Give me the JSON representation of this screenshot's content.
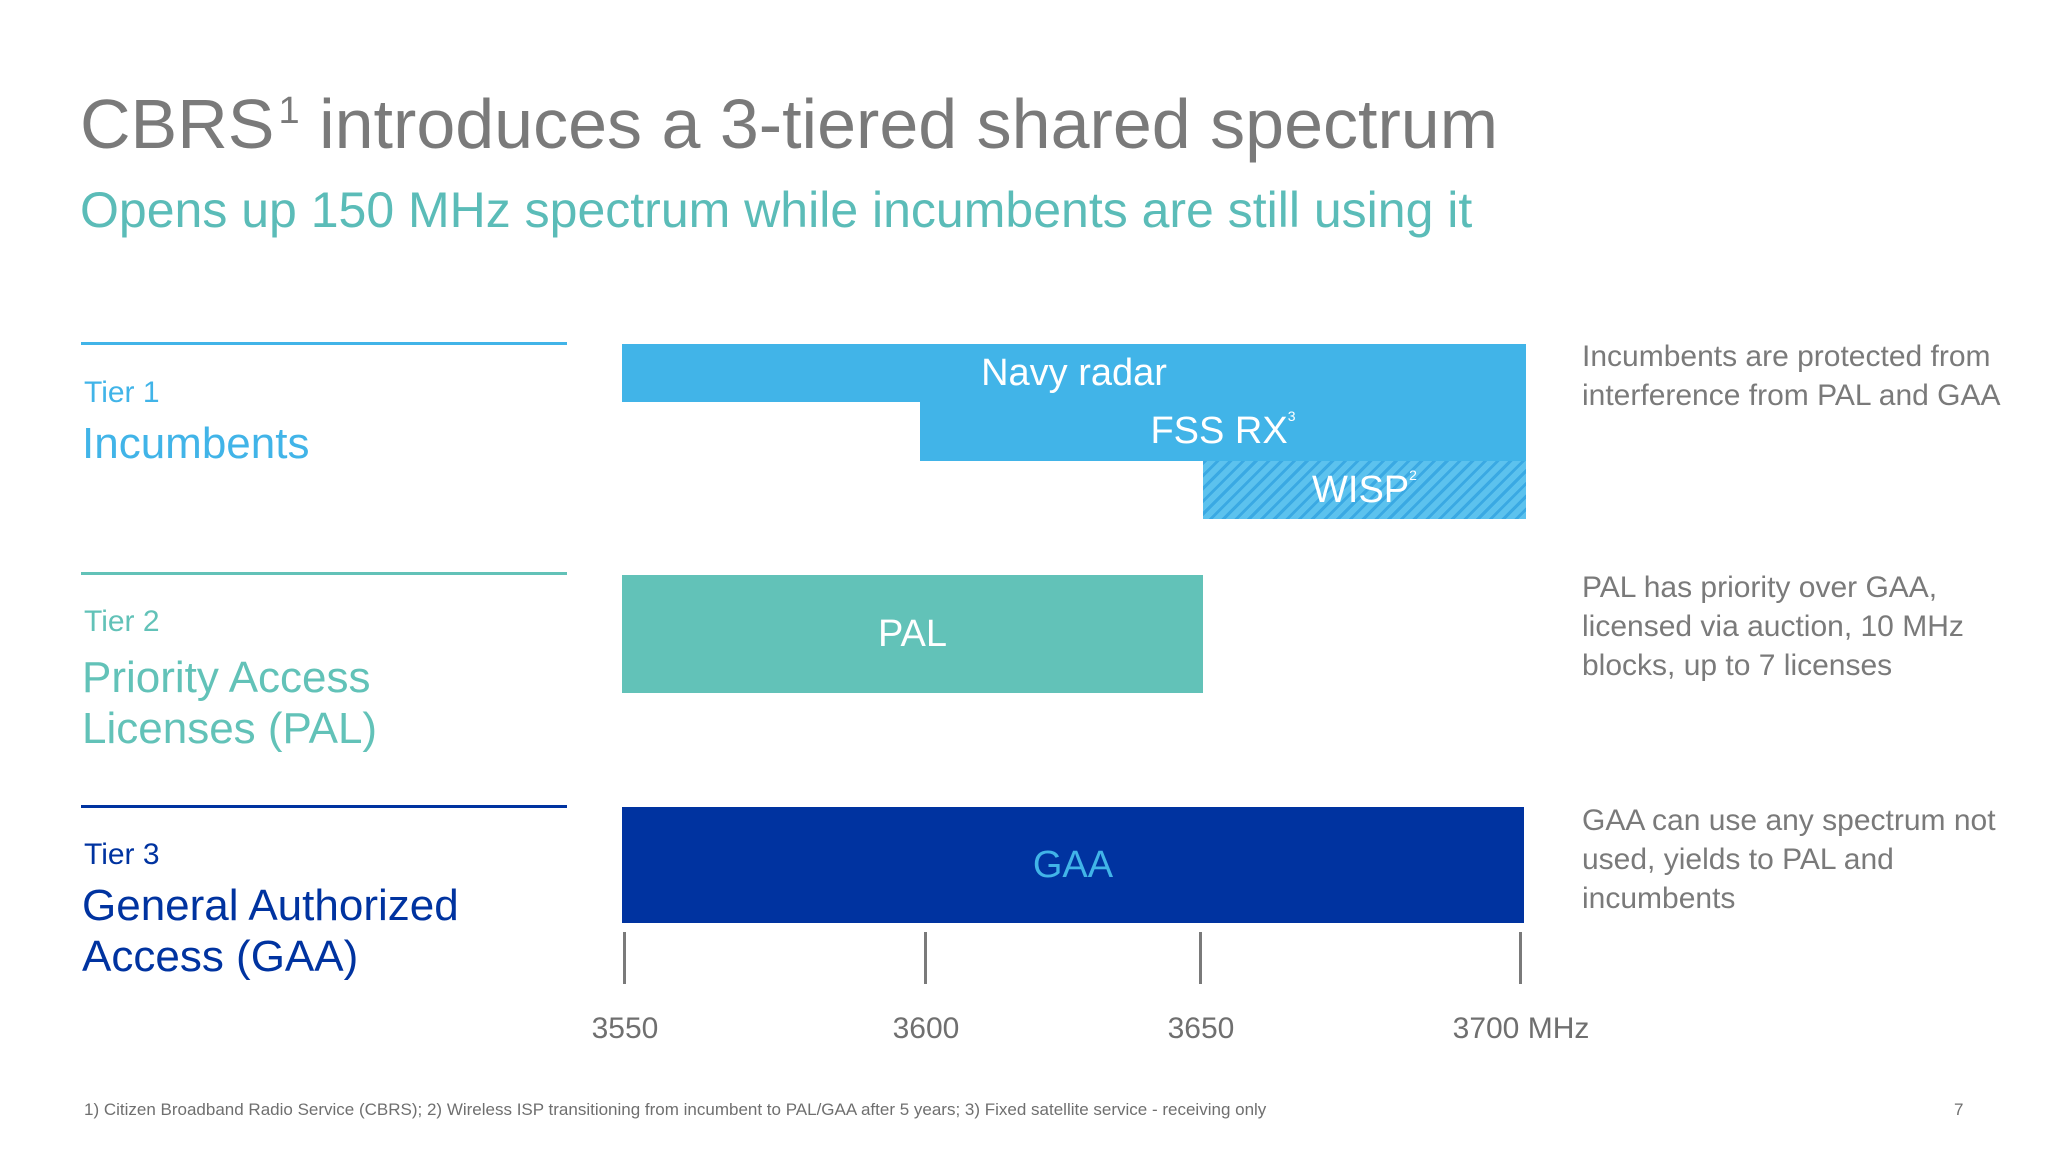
{
  "slide": {
    "title": "CBRS",
    "title_sup": "1",
    "title_rest": " introduces a 3-tiered shared spectrum",
    "subtitle": "Opens up 150 MHz spectrum while incumbents are still using it",
    "footnote": "1) Citizen Broadband Radio Service (CBRS); 2) Wireless ISP transitioning from incumbent to PAL/GAA after 5 years; 3) Fixed satellite service - receiving only",
    "page_number": "7"
  },
  "colors": {
    "tier1": "#41b4e8",
    "tier2": "#62c2b8",
    "tier3": "#0033a0",
    "title": "#7a7a7a",
    "subtitle": "#5bbcb8"
  },
  "tiers": [
    {
      "label": "Tier 1",
      "name_line1": "Incumbents",
      "name_line2": "",
      "description": "Incumbents are protected from interference from PAL and GAA"
    },
    {
      "label": "Tier 2",
      "name_line1": "Priority Access",
      "name_line2": "Licenses (PAL)",
      "description": "PAL has priority over GAA, licensed via auction, 10 MHz blocks, up to 7 licenses"
    },
    {
      "label": "Tier 3",
      "name_line1": "General Authorized",
      "name_line2": "Access (GAA)",
      "description": "GAA can use any spectrum not used, yields to PAL and incumbents"
    }
  ],
  "bars": [
    {
      "label": "Navy radar",
      "sup": "",
      "from_mhz": 3550,
      "to_mhz": 3700,
      "tier": 1
    },
    {
      "label": "FSS RX",
      "sup": "3",
      "from_mhz": 3600,
      "to_mhz": 3700,
      "tier": 1
    },
    {
      "label": "WISP",
      "sup": "2",
      "from_mhz": 3650,
      "to_mhz": 3700,
      "tier": 1,
      "hatched": true
    },
    {
      "label": "PAL",
      "sup": "",
      "from_mhz": 3550,
      "to_mhz": 3650,
      "tier": 2
    },
    {
      "label": "GAA",
      "sup": "",
      "from_mhz": 3550,
      "to_mhz": 3700,
      "tier": 3
    }
  ],
  "axis": {
    "ticks": [
      "3550",
      "3600",
      "3650",
      "3700 MHz"
    ],
    "min_mhz": 3550,
    "max_mhz": 3700
  }
}
